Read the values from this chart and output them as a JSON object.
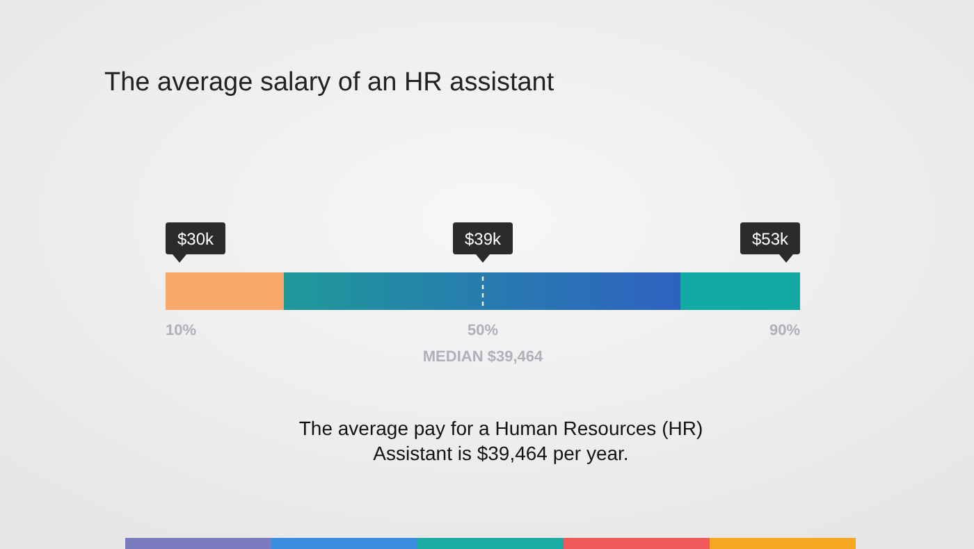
{
  "chart_data": {
    "type": "other",
    "title": "The average salary of an HR assistant",
    "categories": [
      "10%",
      "50%",
      "90%"
    ],
    "values": [
      30,
      39,
      53
    ],
    "value_labels": [
      "$30k",
      "$39k",
      "$53k"
    ],
    "annotations": [
      "MEDIAN $39,464",
      "The average pay for a Human Resources (HR)\nAssistant is $39,464 per year."
    ]
  }
}
